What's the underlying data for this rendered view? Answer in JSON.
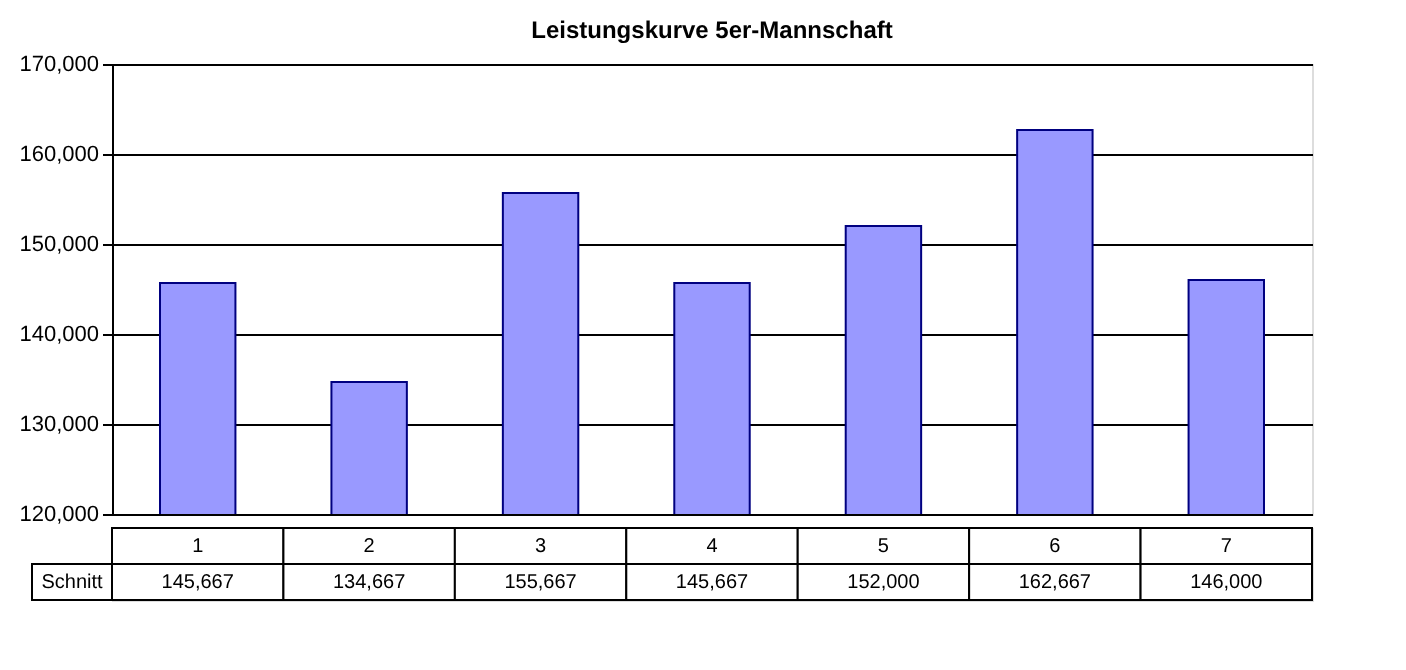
{
  "chart_data": {
    "type": "bar",
    "title": "Leistungskurve 5er-Mannschaft",
    "categories": [
      "1",
      "2",
      "3",
      "4",
      "5",
      "6",
      "7"
    ],
    "series": [
      {
        "name": "Schnitt",
        "color": "#9999ff",
        "values": [
          145667,
          134667,
          155667,
          145667,
          152000,
          162667,
          146000
        ],
        "value_labels": [
          "145,667",
          "134,667",
          "155,667",
          "145,667",
          "152,000",
          "162,667",
          "146,000"
        ]
      }
    ],
    "ylim": [
      120000,
      170000
    ],
    "yticks": [
      {
        "value": 120000,
        "label": "120,000"
      },
      {
        "value": 130000,
        "label": "130,000"
      },
      {
        "value": 140000,
        "label": "140,000"
      },
      {
        "value": 150000,
        "label": "150,000"
      },
      {
        "value": 160000,
        "label": "160,000"
      },
      {
        "value": 170000,
        "label": "170,000"
      }
    ],
    "grid": "y",
    "legend": false
  }
}
